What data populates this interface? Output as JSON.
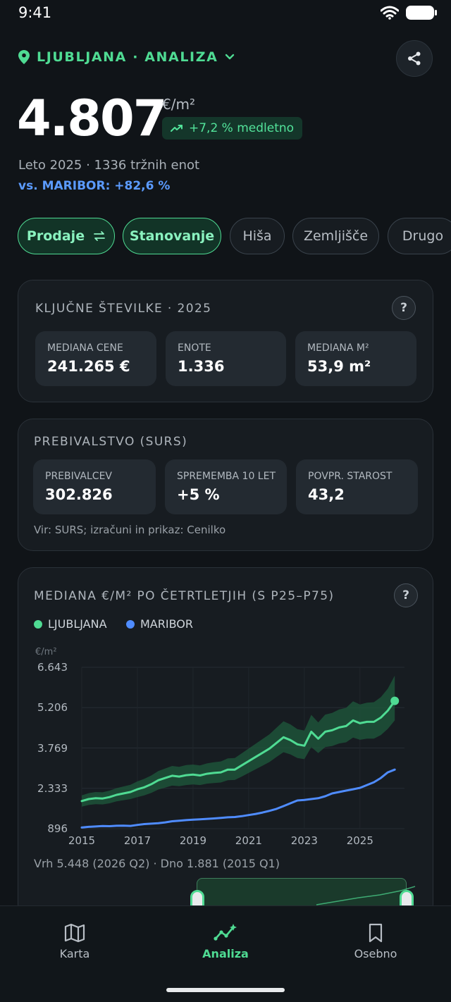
{
  "status_bar": {
    "time": "9:41"
  },
  "header": {
    "location": "LJUBLJANA · ANALIZA",
    "price": "4.807",
    "unit": "€/m²",
    "trend": "+7,2 % medletno",
    "meta": "Leto 2025 · 1336 tržnih enot",
    "comparison": "vs. MARIBOR: +82,6 %"
  },
  "filters": [
    {
      "label": "Prodaje",
      "active": true
    },
    {
      "label": "Stanovanje",
      "active": true
    },
    {
      "label": "Hiša",
      "active": false
    },
    {
      "label": "Zemljišče",
      "active": false
    },
    {
      "label": "Drugo",
      "active": false
    }
  ],
  "key_figures": {
    "title": "KLJUČNE ŠTEVILKE · 2025",
    "help": "?",
    "stats": [
      {
        "label": "MEDIANA CENE",
        "value": "241.265 €"
      },
      {
        "label": "ENOTE",
        "value": "1.336"
      },
      {
        "label": "MEDIANA M²",
        "value": "53,9 m²"
      }
    ]
  },
  "population": {
    "title": "PREBIVALSTVO (SURS)",
    "stats": [
      {
        "label": "PREBIVALCEV",
        "value": "302.826"
      },
      {
        "label": "SPREMEMBA 10 LET",
        "value": "+5 %"
      },
      {
        "label": "POVPR. STAROST",
        "value": "43,2"
      }
    ],
    "source": "Vir: SURS; izračuni in prikaz: Cenilko"
  },
  "chart_card": {
    "title": "MEDIANA €/M² PO ČETRTLETJIH (S P25–P75)",
    "help": "?",
    "peak_text": "Vrh 5.448 (2026 Q2) · Dno 1.881 (2015 Q1)"
  },
  "chart_data": {
    "type": "line",
    "ylabel": "€/m²",
    "ylim": [
      896,
      6643
    ],
    "y_ticks": [
      "6.643",
      "5.206",
      "3.769",
      "2.333",
      "896"
    ],
    "y_tick_values": [
      6643,
      5206,
      3769,
      2333,
      896
    ],
    "x_ticks": [
      "2015",
      "2017",
      "2019",
      "2021",
      "2023",
      "2025"
    ],
    "x_tick_values": [
      2015,
      2017,
      2019,
      2021,
      2023,
      2025
    ],
    "x": [
      2015.0,
      2015.25,
      2015.5,
      2015.75,
      2016.0,
      2016.25,
      2016.5,
      2016.75,
      2017.0,
      2017.25,
      2017.5,
      2017.75,
      2018.0,
      2018.25,
      2018.5,
      2018.75,
      2019.0,
      2019.25,
      2019.5,
      2019.75,
      2020.0,
      2020.25,
      2020.5,
      2020.75,
      2021.0,
      2021.25,
      2021.5,
      2021.75,
      2022.0,
      2022.25,
      2022.5,
      2022.75,
      2023.0,
      2023.25,
      2023.5,
      2023.75,
      2024.0,
      2024.25,
      2024.5,
      2024.75,
      2025.0,
      2025.25,
      2025.5,
      2025.75,
      2026.0,
      2026.25
    ],
    "series": [
      {
        "name": "LJUBLJANA",
        "color": "#4fdb93",
        "values": [
          1881,
          1950,
          1980,
          1970,
          2020,
          2100,
          2150,
          2200,
          2300,
          2370,
          2480,
          2620,
          2700,
          2780,
          2750,
          2800,
          2820,
          2790,
          2850,
          2880,
          2900,
          3000,
          3000,
          3150,
          3300,
          3450,
          3600,
          3750,
          3950,
          4150,
          4050,
          3900,
          3850,
          4350,
          4100,
          4350,
          4400,
          4500,
          4550,
          4750,
          4650,
          4700,
          4700,
          4850,
          5100,
          5448
        ],
        "p25": [
          1680,
          1740,
          1770,
          1760,
          1800,
          1870,
          1910,
          1950,
          2020,
          2080,
          2170,
          2290,
          2360,
          2430,
          2410,
          2450,
          2470,
          2450,
          2500,
          2520,
          2540,
          2620,
          2630,
          2750,
          2880,
          3010,
          3140,
          3270,
          3450,
          3620,
          3540,
          3410,
          3370,
          3800,
          3590,
          3800,
          3840,
          3930,
          3970,
          4140,
          4060,
          4100,
          4100,
          4230,
          4450,
          4750
        ],
        "p75": [
          2080,
          2160,
          2200,
          2190,
          2250,
          2340,
          2400,
          2460,
          2580,
          2670,
          2790,
          2950,
          3040,
          3130,
          3100,
          3160,
          3180,
          3150,
          3220,
          3260,
          3290,
          3400,
          3410,
          3580,
          3750,
          3920,
          4090,
          4260,
          4490,
          4720,
          4610,
          4440,
          4390,
          4950,
          4680,
          4960,
          5020,
          5140,
          5200,
          5430,
          5320,
          5380,
          5400,
          5580,
          5880,
          6350
        ]
      },
      {
        "name": "MARIBOR",
        "color": "#4f8cff",
        "values": [
          935,
          960,
          975,
          990,
          985,
          1000,
          1005,
          995,
          1030,
          1060,
          1075,
          1090,
          1120,
          1160,
          1180,
          1200,
          1215,
          1230,
          1245,
          1260,
          1280,
          1300,
          1310,
          1340,
          1380,
          1420,
          1470,
          1530,
          1600,
          1700,
          1800,
          1900,
          1920,
          1950,
          1980,
          2050,
          2150,
          2200,
          2250,
          2300,
          2350,
          2450,
          2550,
          2700,
          2900,
          3000
        ]
      }
    ],
    "legend": "top-left",
    "grid": true
  },
  "nav": [
    {
      "label": "Karta",
      "icon": "map-icon",
      "active": false
    },
    {
      "label": "Analiza",
      "icon": "analytics-icon",
      "active": true
    },
    {
      "label": "Osebno",
      "icon": "bookmark-icon",
      "active": false
    }
  ]
}
